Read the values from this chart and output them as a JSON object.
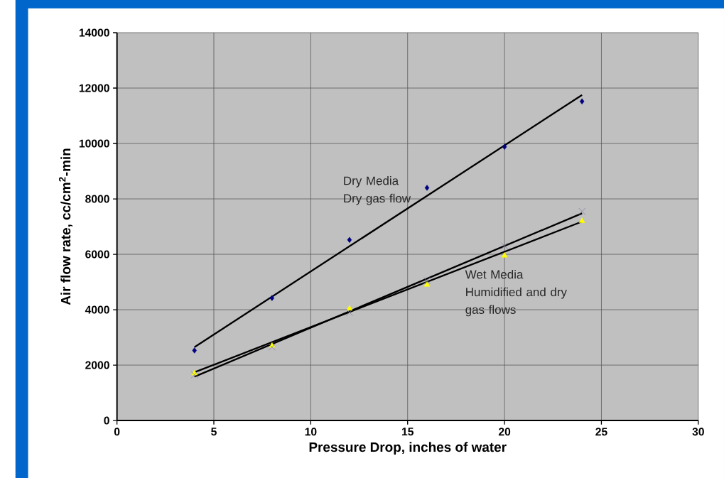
{
  "chart_data": {
    "type": "scatter",
    "xlabel": "Pressure Drop, inches of water",
    "ylabel": "Air flow rate, cc/cm$^{2}$-min",
    "xlim": [
      0,
      30
    ],
    "xticks": [
      0,
      5,
      10,
      15,
      20,
      25,
      30
    ],
    "ylim": [
      0,
      14000
    ],
    "yticks": [
      0,
      2000,
      4000,
      6000,
      8000,
      10000,
      12000,
      14000
    ],
    "grid": true,
    "series": [
      {
        "marker": "diamond",
        "color": "#000080",
        "x": [
          4,
          8,
          12,
          16,
          20,
          24
        ],
        "values": [
          2530,
          4420,
          6520,
          8400,
          9880,
          11520
        ]
      },
      {
        "marker": "triangle",
        "color": "#ffff00",
        "x": [
          4,
          8,
          12,
          16,
          20,
          24
        ],
        "values": [
          1700,
          2700,
          4040,
          4900,
          5950,
          7200
        ]
      },
      {
        "marker": "cross",
        "color": "#8080a0",
        "x": [
          4,
          8,
          12,
          16,
          20,
          24
        ],
        "values": [
          1650,
          2650,
          3900,
          5050,
          6300,
          7550
        ]
      },
      {
        "type": "line",
        "marker": "none",
        "color": "#000000",
        "x": [
          4,
          24
        ],
        "values": [
          2650,
          11750
        ]
      },
      {
        "type": "line",
        "marker": "none",
        "color": "#000000",
        "x": [
          4,
          24
        ],
        "values": [
          1740,
          7180
        ]
      },
      {
        "type": "line",
        "marker": "none",
        "color": "#000000",
        "x": [
          4,
          24
        ],
        "values": [
          1580,
          7480
        ]
      }
    ],
    "annotations": [
      "Dry Media Dry gas flow",
      "Wet Media Humidified and dry gas flows"
    ]
  }
}
